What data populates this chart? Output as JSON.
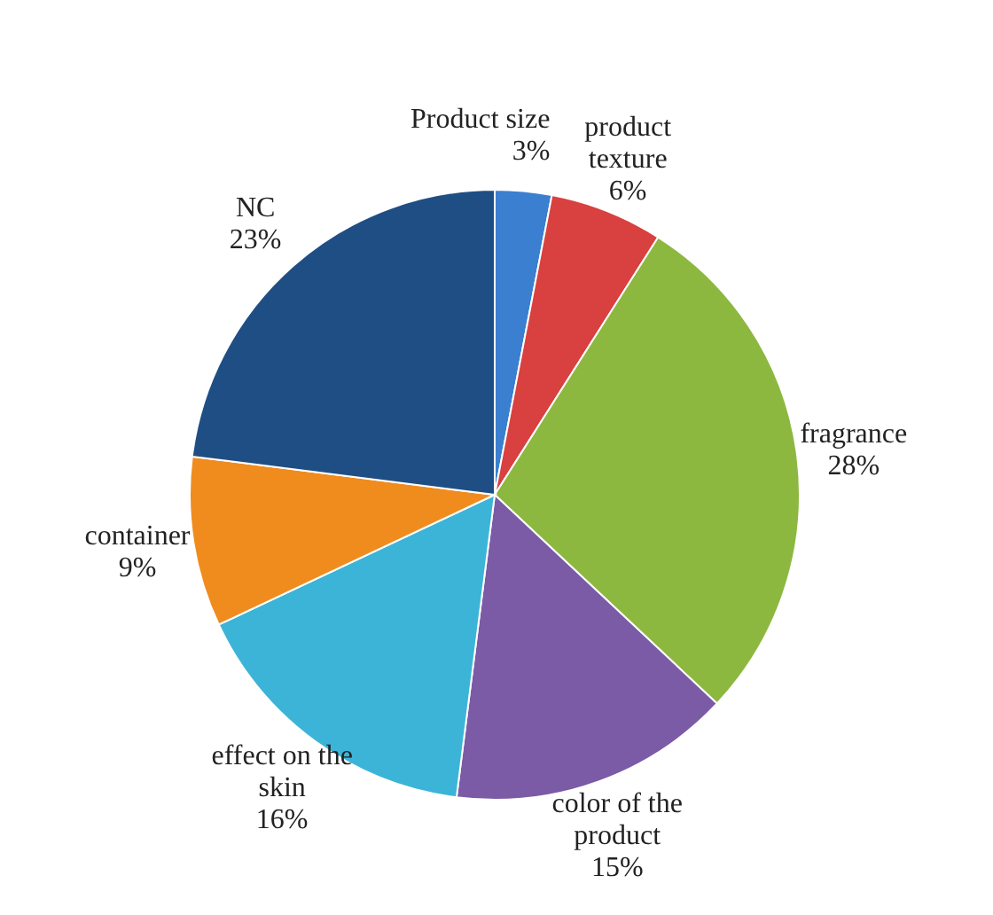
{
  "chart_data": {
    "type": "pie",
    "categories": [
      "Product size",
      "product texture",
      "fragrance",
      "color of the product",
      "effect on the skin",
      "container",
      "NC"
    ],
    "values": [
      3,
      6,
      28,
      15,
      16,
      9,
      23
    ],
    "value_labels": [
      "3%",
      "6%",
      "28%",
      "15%",
      "16%",
      "9%",
      "23%"
    ],
    "colors": [
      "#3a7fd0",
      "#d94040",
      "#8db840",
      "#7b5aa6",
      "#3cb4d8",
      "#f08c1e",
      "#1f4e84"
    ],
    "legend": false
  }
}
